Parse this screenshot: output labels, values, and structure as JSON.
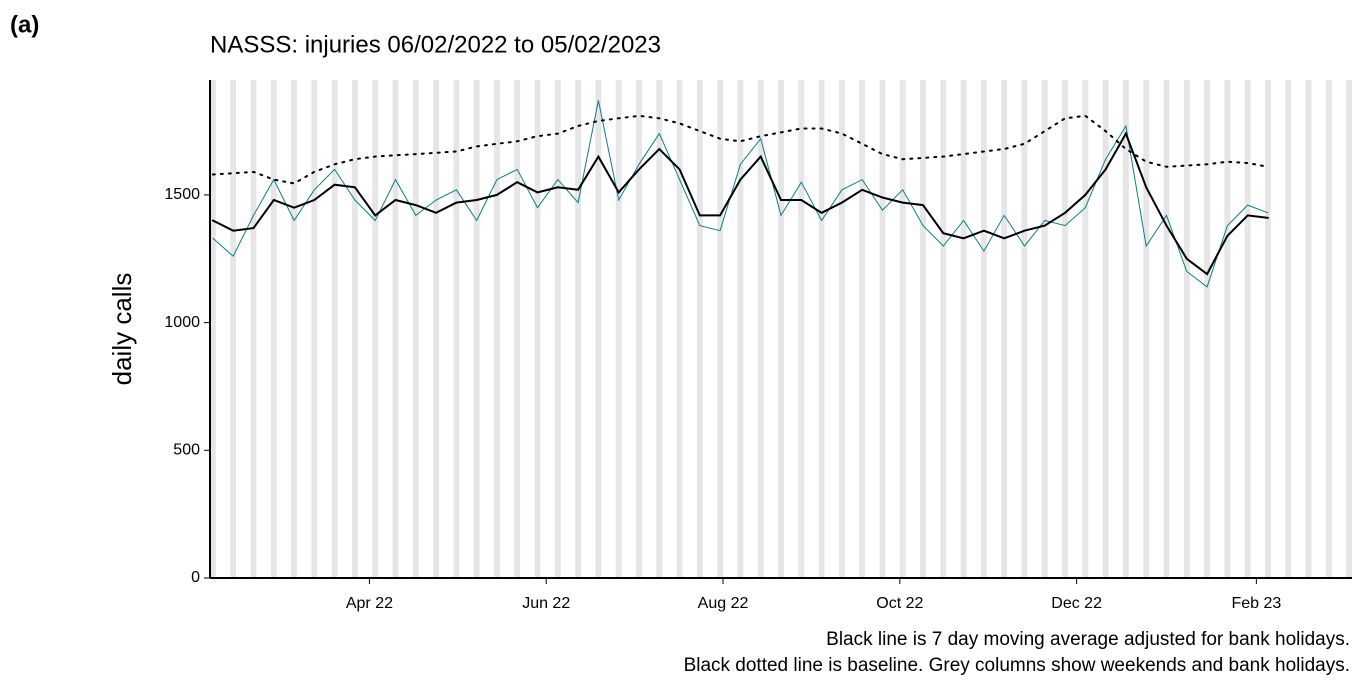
{
  "panel_label": "(a)",
  "chart_data": {
    "type": "line",
    "title": "NASSS: injuries 06/02/2022 to 05/02/2023",
    "y_label": "daily calls",
    "notes": [
      "Black line is 7 day moving average adjusted for bank holidays.",
      "Black dotted line is baseline. Grey columns show weekends and bank holidays."
    ],
    "x": [
      "2022-02-06",
      "2022-02-13",
      "2022-02-20",
      "2022-02-27",
      "2022-03-06",
      "2022-03-13",
      "2022-03-20",
      "2022-03-27",
      "2022-04-03",
      "2022-04-10",
      "2022-04-17",
      "2022-04-24",
      "2022-05-01",
      "2022-05-08",
      "2022-05-15",
      "2022-05-22",
      "2022-05-29",
      "2022-06-05",
      "2022-06-12",
      "2022-06-19",
      "2022-06-26",
      "2022-07-03",
      "2022-07-10",
      "2022-07-17",
      "2022-07-24",
      "2022-07-31",
      "2022-08-07",
      "2022-08-14",
      "2022-08-21",
      "2022-08-28",
      "2022-09-04",
      "2022-09-11",
      "2022-09-18",
      "2022-09-25",
      "2022-10-02",
      "2022-10-09",
      "2022-10-16",
      "2022-10-23",
      "2022-10-30",
      "2022-11-06",
      "2022-11-13",
      "2022-11-20",
      "2022-11-27",
      "2022-12-04",
      "2022-12-11",
      "2022-12-18",
      "2022-12-25",
      "2023-01-01",
      "2023-01-08",
      "2023-01-15",
      "2023-01-22",
      "2023-01-29",
      "2023-02-05",
      "2023-02-12",
      "2023-02-19",
      "2023-02-26"
    ],
    "series": [
      {
        "color": "#0e7c8c",
        "width": 1,
        "values": [
          1330,
          1260,
          1420,
          1560,
          1400,
          1520,
          1600,
          1480,
          1400,
          1560,
          1420,
          1480,
          1520,
          1400,
          1560,
          1600,
          1450,
          1560,
          1470,
          1870,
          1480,
          1620,
          1740,
          1560,
          1380,
          1360,
          1620,
          1720,
          1420,
          1550,
          1400,
          1520,
          1560,
          1440,
          1520,
          1380,
          1300,
          1400,
          1280,
          1420,
          1300,
          1400,
          1380,
          1450,
          1640,
          1770,
          1300,
          1420,
          1200,
          1140,
          1380,
          1460,
          1430,
          null,
          null,
          null
        ]
      },
      {
        "color": "#000000",
        "width": 2,
        "values": [
          1400,
          1360,
          1370,
          1480,
          1450,
          1480,
          1540,
          1530,
          1420,
          1480,
          1460,
          1430,
          1470,
          1480,
          1500,
          1550,
          1510,
          1530,
          1520,
          1650,
          1510,
          1600,
          1680,
          1600,
          1420,
          1420,
          1560,
          1650,
          1480,
          1480,
          1430,
          1470,
          1520,
          1490,
          1470,
          1460,
          1350,
          1330,
          1360,
          1330,
          1360,
          1380,
          1430,
          1500,
          1600,
          1740,
          1530,
          1380,
          1250,
          1190,
          1340,
          1420,
          1410,
          null,
          null,
          null
        ]
      },
      {
        "color": "#000000",
        "width": 2,
        "line_style": "dotted",
        "values": [
          1580,
          1585,
          1590,
          1560,
          1545,
          1590,
          1620,
          1640,
          1650,
          1655,
          1660,
          1665,
          1670,
          1690,
          1700,
          1710,
          1730,
          1740,
          1770,
          1790,
          1800,
          1810,
          1800,
          1780,
          1750,
          1720,
          1710,
          1730,
          1745,
          1760,
          1760,
          1740,
          1700,
          1660,
          1640,
          1645,
          1650,
          1660,
          1670,
          1680,
          1700,
          1750,
          1800,
          1810,
          1750,
          1680,
          1630,
          1610,
          1615,
          1620,
          1630,
          1625,
          1610,
          null,
          null,
          null
        ]
      }
    ],
    "xlim": [
      "2022-02-05",
      "2023-03-06"
    ],
    "xticks": [
      {
        "value": "2022-04-01",
        "label": "Apr 22"
      },
      {
        "value": "2022-06-01",
        "label": "Jun 22"
      },
      {
        "value": "2022-08-01",
        "label": "Aug 22"
      },
      {
        "value": "2022-10-01",
        "label": "Oct 22"
      },
      {
        "value": "2022-12-01",
        "label": "Dec 22"
      },
      {
        "value": "2023-02-01",
        "label": "Feb 23"
      }
    ],
    "ylim": [
      0,
      1950
    ],
    "yticks": [
      0,
      500,
      1000,
      1500
    ],
    "weekend_color": "#e5e5e5",
    "grid": false
  }
}
